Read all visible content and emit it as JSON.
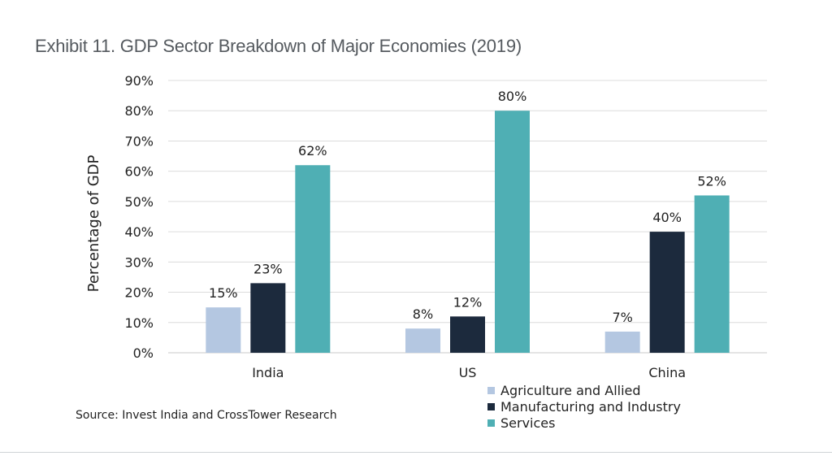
{
  "title": "Exhibit 11. GDP Sector Breakdown of Major Economies (2019)",
  "source": "Source: Invest India and CrossTower Research",
  "chart_data": {
    "type": "bar",
    "categories": [
      "India",
      "US",
      "China"
    ],
    "series": [
      {
        "name": "Agriculture and Allied",
        "values": [
          15,
          8,
          7
        ],
        "labels": [
          "15%",
          "8%",
          "7%"
        ],
        "color": "#b4c7e1"
      },
      {
        "name": "Manufacturing and Industry",
        "values": [
          23,
          12,
          40
        ],
        "labels": [
          "23%",
          "12%",
          "40%"
        ],
        "color": "#1c2a3d"
      },
      {
        "name": "Services",
        "values": [
          62,
          80,
          52
        ],
        "labels": [
          "62%",
          "80%",
          "52%"
        ],
        "color": "#4fafb4"
      }
    ],
    "ylabel": "Percentage of GDP",
    "xlabel": "",
    "ylim": [
      0,
      90
    ],
    "yticks": [
      "0%",
      "10%",
      "20%",
      "30%",
      "40%",
      "50%",
      "60%",
      "70%",
      "80%",
      "90%"
    ],
    "grid": true,
    "legend_position": "bottom-right"
  }
}
